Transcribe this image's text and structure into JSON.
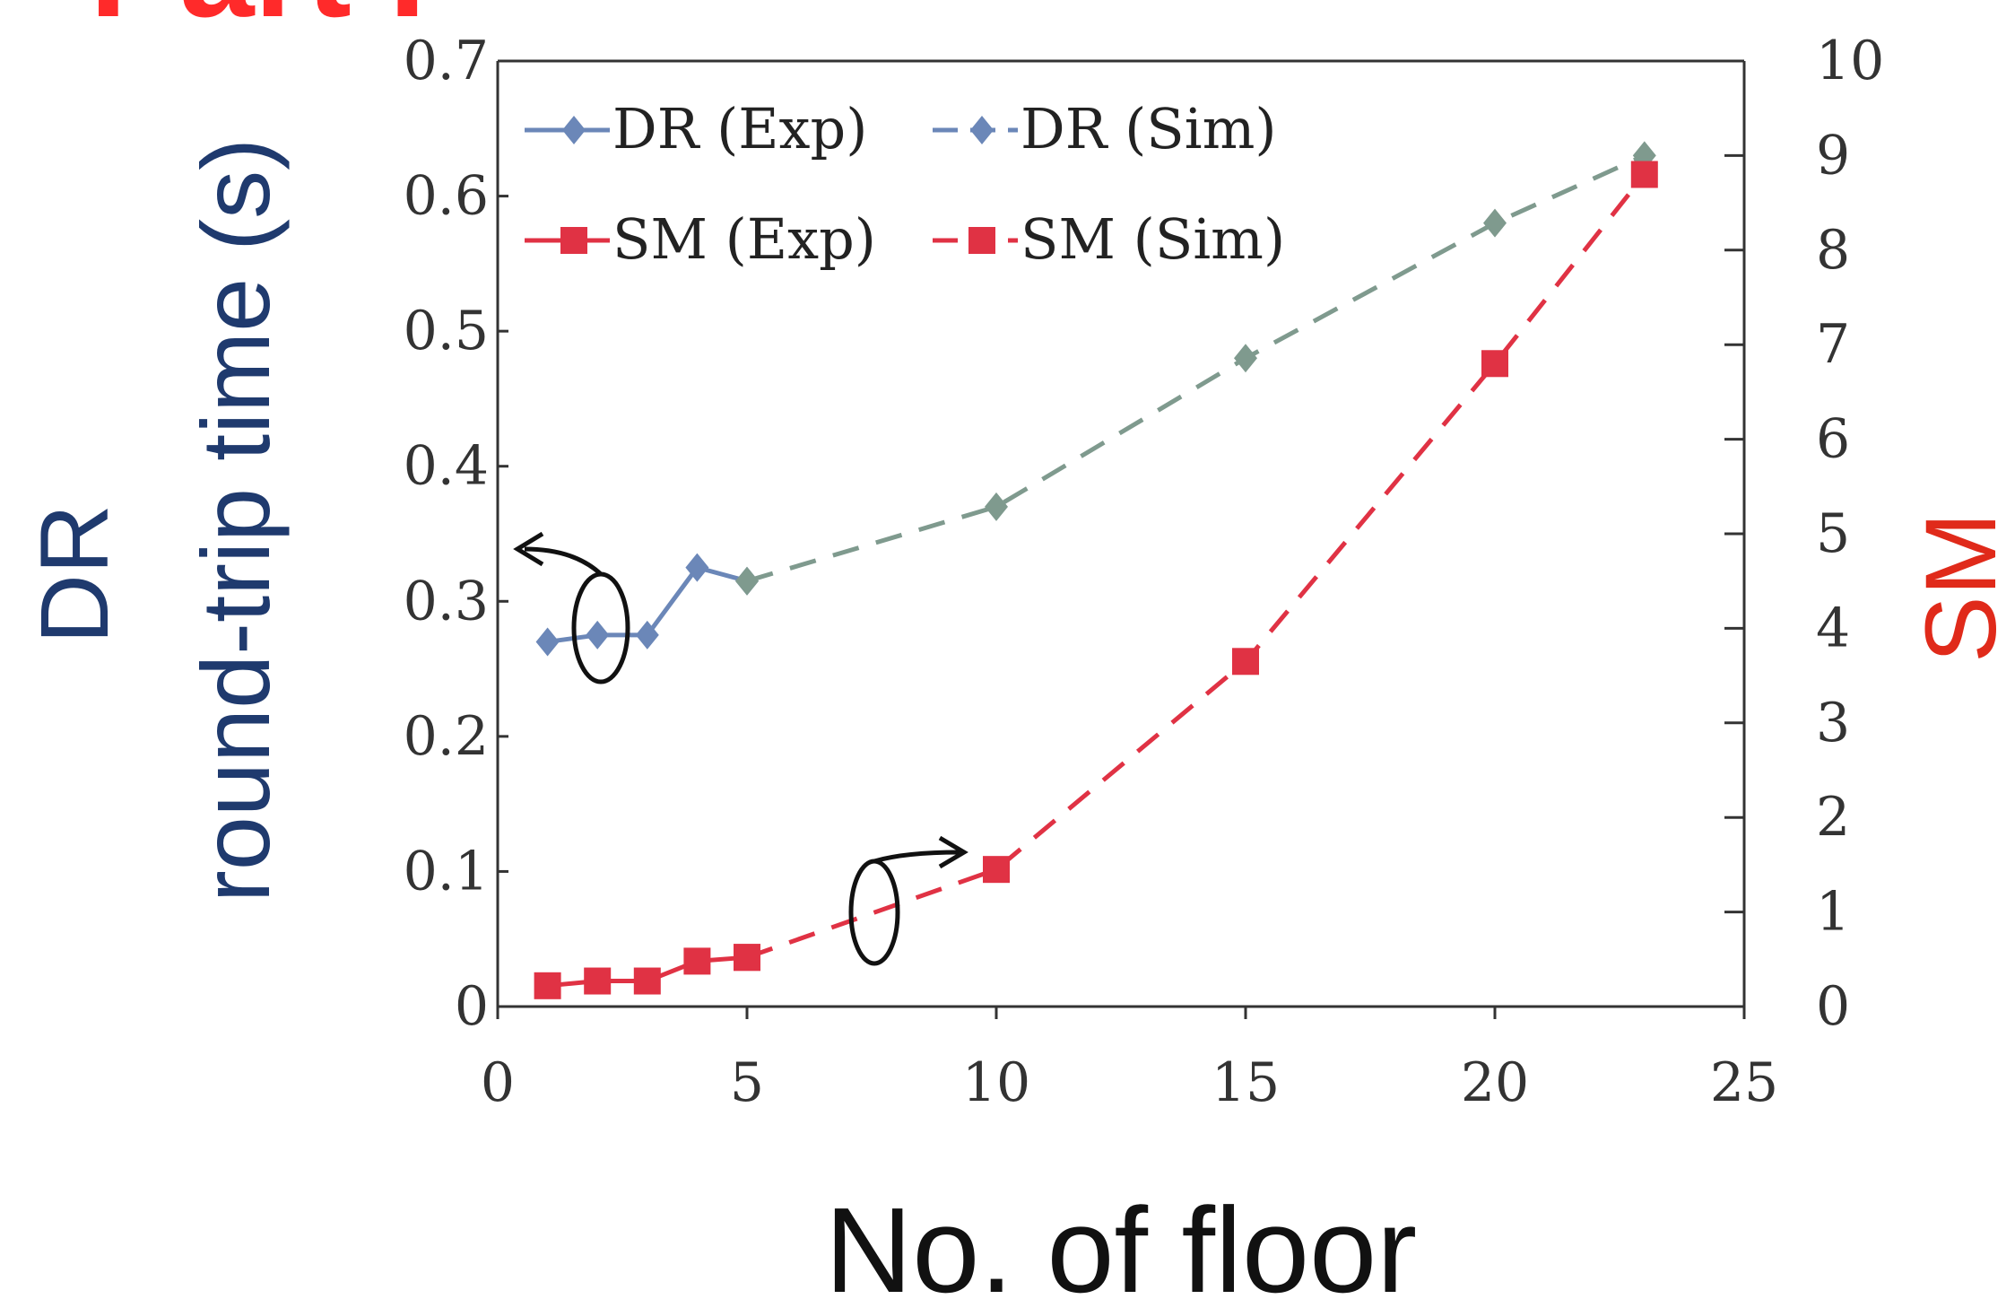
{
  "header_fragment": "Part I",
  "colors": {
    "dr": "#6b87b8",
    "sm": "#e03244",
    "dr_sim_tail": "#7f9a8e",
    "left_axis_title": "#1f3a6e",
    "right_axis_title": "#e02a1a",
    "header": "#ff2a2a"
  },
  "chart_data": {
    "type": "line",
    "xlabel": "No. of floor",
    "ylabel_left": [
      "DR",
      "round-trip time (s)"
    ],
    "ylabel_right": "SM",
    "xlim": [
      0,
      25
    ],
    "ylim_left": [
      0,
      0.7
    ],
    "ylim_right": [
      0,
      10
    ],
    "x_ticks": [
      "0",
      "5",
      "10",
      "15",
      "20",
      "25"
    ],
    "y_left_ticks": [
      "0",
      "0.1",
      "0.2",
      "0.3",
      "0.4",
      "0.5",
      "0.6",
      "0.7"
    ],
    "y_right_ticks": [
      "0",
      "1",
      "2",
      "3",
      "4",
      "5",
      "6",
      "7",
      "8",
      "9",
      "10"
    ],
    "grid": false,
    "legend_position": "top-left",
    "series": [
      {
        "name": "DR (Exp)",
        "axis": "left",
        "style": "solid",
        "marker": "diamond",
        "x": [
          1,
          2,
          3,
          4,
          5
        ],
        "y": [
          0.27,
          0.275,
          0.275,
          0.325,
          0.315
        ]
      },
      {
        "name": "DR (Sim)",
        "axis": "left",
        "style": "dashed",
        "marker": "diamond",
        "x": [
          5,
          10,
          15,
          20,
          23
        ],
        "y": [
          0.315,
          0.37,
          0.48,
          0.58,
          0.63
        ]
      },
      {
        "name": "SM (Exp)",
        "axis": "right",
        "style": "solid",
        "marker": "square",
        "x": [
          1,
          2,
          3,
          4,
          5
        ],
        "y": [
          0.22,
          0.27,
          0.27,
          0.48,
          0.52
        ]
      },
      {
        "name": "SM (Sim)",
        "axis": "right",
        "style": "dashed",
        "marker": "square",
        "x": [
          5,
          10,
          15,
          20,
          23
        ],
        "y": [
          0.52,
          1.45,
          3.65,
          6.8,
          8.8
        ]
      }
    ]
  }
}
